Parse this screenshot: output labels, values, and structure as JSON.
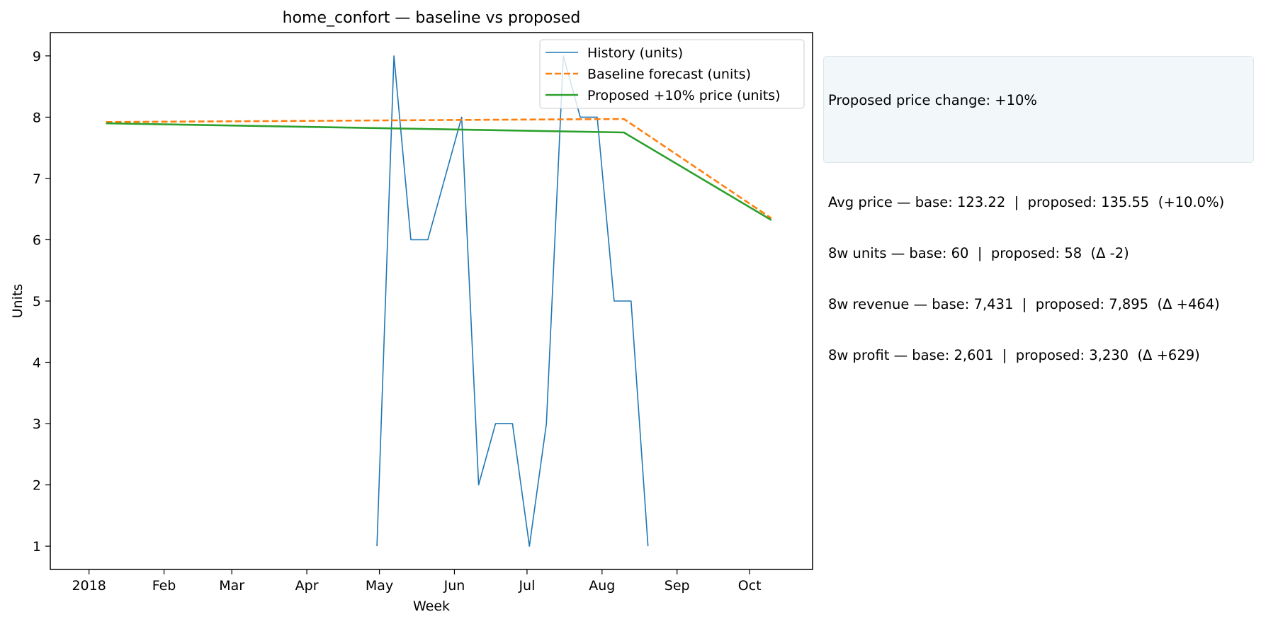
{
  "chart_data": {
    "type": "line",
    "title": "home_confort — baseline vs proposed",
    "xlabel": "Week",
    "ylabel": "Units",
    "ylim": [
      0.62,
      9.38
    ],
    "xlim": [
      "2017-12-16",
      "2018-10-27"
    ],
    "x_ticks": [
      {
        "date": "2018-01-01",
        "label": "2018"
      },
      {
        "date": "2018-02-01",
        "label": "Feb"
      },
      {
        "date": "2018-03-01",
        "label": "Mar"
      },
      {
        "date": "2018-04-01",
        "label": "Apr"
      },
      {
        "date": "2018-05-01",
        "label": "May"
      },
      {
        "date": "2018-06-01",
        "label": "Jun"
      },
      {
        "date": "2018-07-01",
        "label": "Jul"
      },
      {
        "date": "2018-08-01",
        "label": "Aug"
      },
      {
        "date": "2018-09-01",
        "label": "Sep"
      },
      {
        "date": "2018-10-01",
        "label": "Oct"
      }
    ],
    "y_ticks": [
      1,
      2,
      3,
      4,
      5,
      6,
      7,
      8,
      9
    ],
    "grid": false,
    "legend_position": "top-right",
    "series": [
      {
        "name": "History (units)",
        "color": "#1f77b4",
        "style": "solid",
        "points": [
          {
            "x": "2018-04-30",
            "y": 1
          },
          {
            "x": "2018-05-07",
            "y": 9
          },
          {
            "x": "2018-05-14",
            "y": 6
          },
          {
            "x": "2018-05-21",
            "y": 6
          },
          {
            "x": "2018-06-04",
            "y": 8
          },
          {
            "x": "2018-06-11",
            "y": 2
          },
          {
            "x": "2018-06-18",
            "y": 3
          },
          {
            "x": "2018-06-25",
            "y": 3
          },
          {
            "x": "2018-07-02",
            "y": 1
          },
          {
            "x": "2018-07-09",
            "y": 3
          },
          {
            "x": "2018-07-16",
            "y": 9
          },
          {
            "x": "2018-07-23",
            "y": 8
          },
          {
            "x": "2018-07-30",
            "y": 8
          },
          {
            "x": "2018-08-06",
            "y": 5
          },
          {
            "x": "2018-08-13",
            "y": 5
          },
          {
            "x": "2018-08-20",
            "y": 1
          }
        ]
      },
      {
        "name": "Baseline forecast (units)",
        "color": "#ff7f0e",
        "style": "dashed",
        "points": [
          {
            "x": "2018-01-08",
            "y": 7.92
          },
          {
            "x": "2018-08-10",
            "y": 7.97
          },
          {
            "x": "2018-10-10",
            "y": 6.35
          }
        ]
      },
      {
        "name": "Proposed +10% price (units)",
        "color": "#2ca02c",
        "style": "solid",
        "points": [
          {
            "x": "2018-01-08",
            "y": 7.9
          },
          {
            "x": "2018-08-10",
            "y": 7.75
          },
          {
            "x": "2018-10-10",
            "y": 6.32
          }
        ]
      }
    ],
    "annotation_box": {
      "line1": "Proposed price change: +10%",
      "line2": "Avg price — base: 123.22  |  proposed: 135.55  (+10.0%)",
      "line3": "8w units — base: 60  |  proposed: 58  (Δ -2)",
      "line4": "8w revenue — base: 7,431  |  proposed: 7,895  (Δ +464)",
      "line5": "8w profit — base: 2,601  |  proposed: 3,230  (Δ +629)"
    }
  }
}
